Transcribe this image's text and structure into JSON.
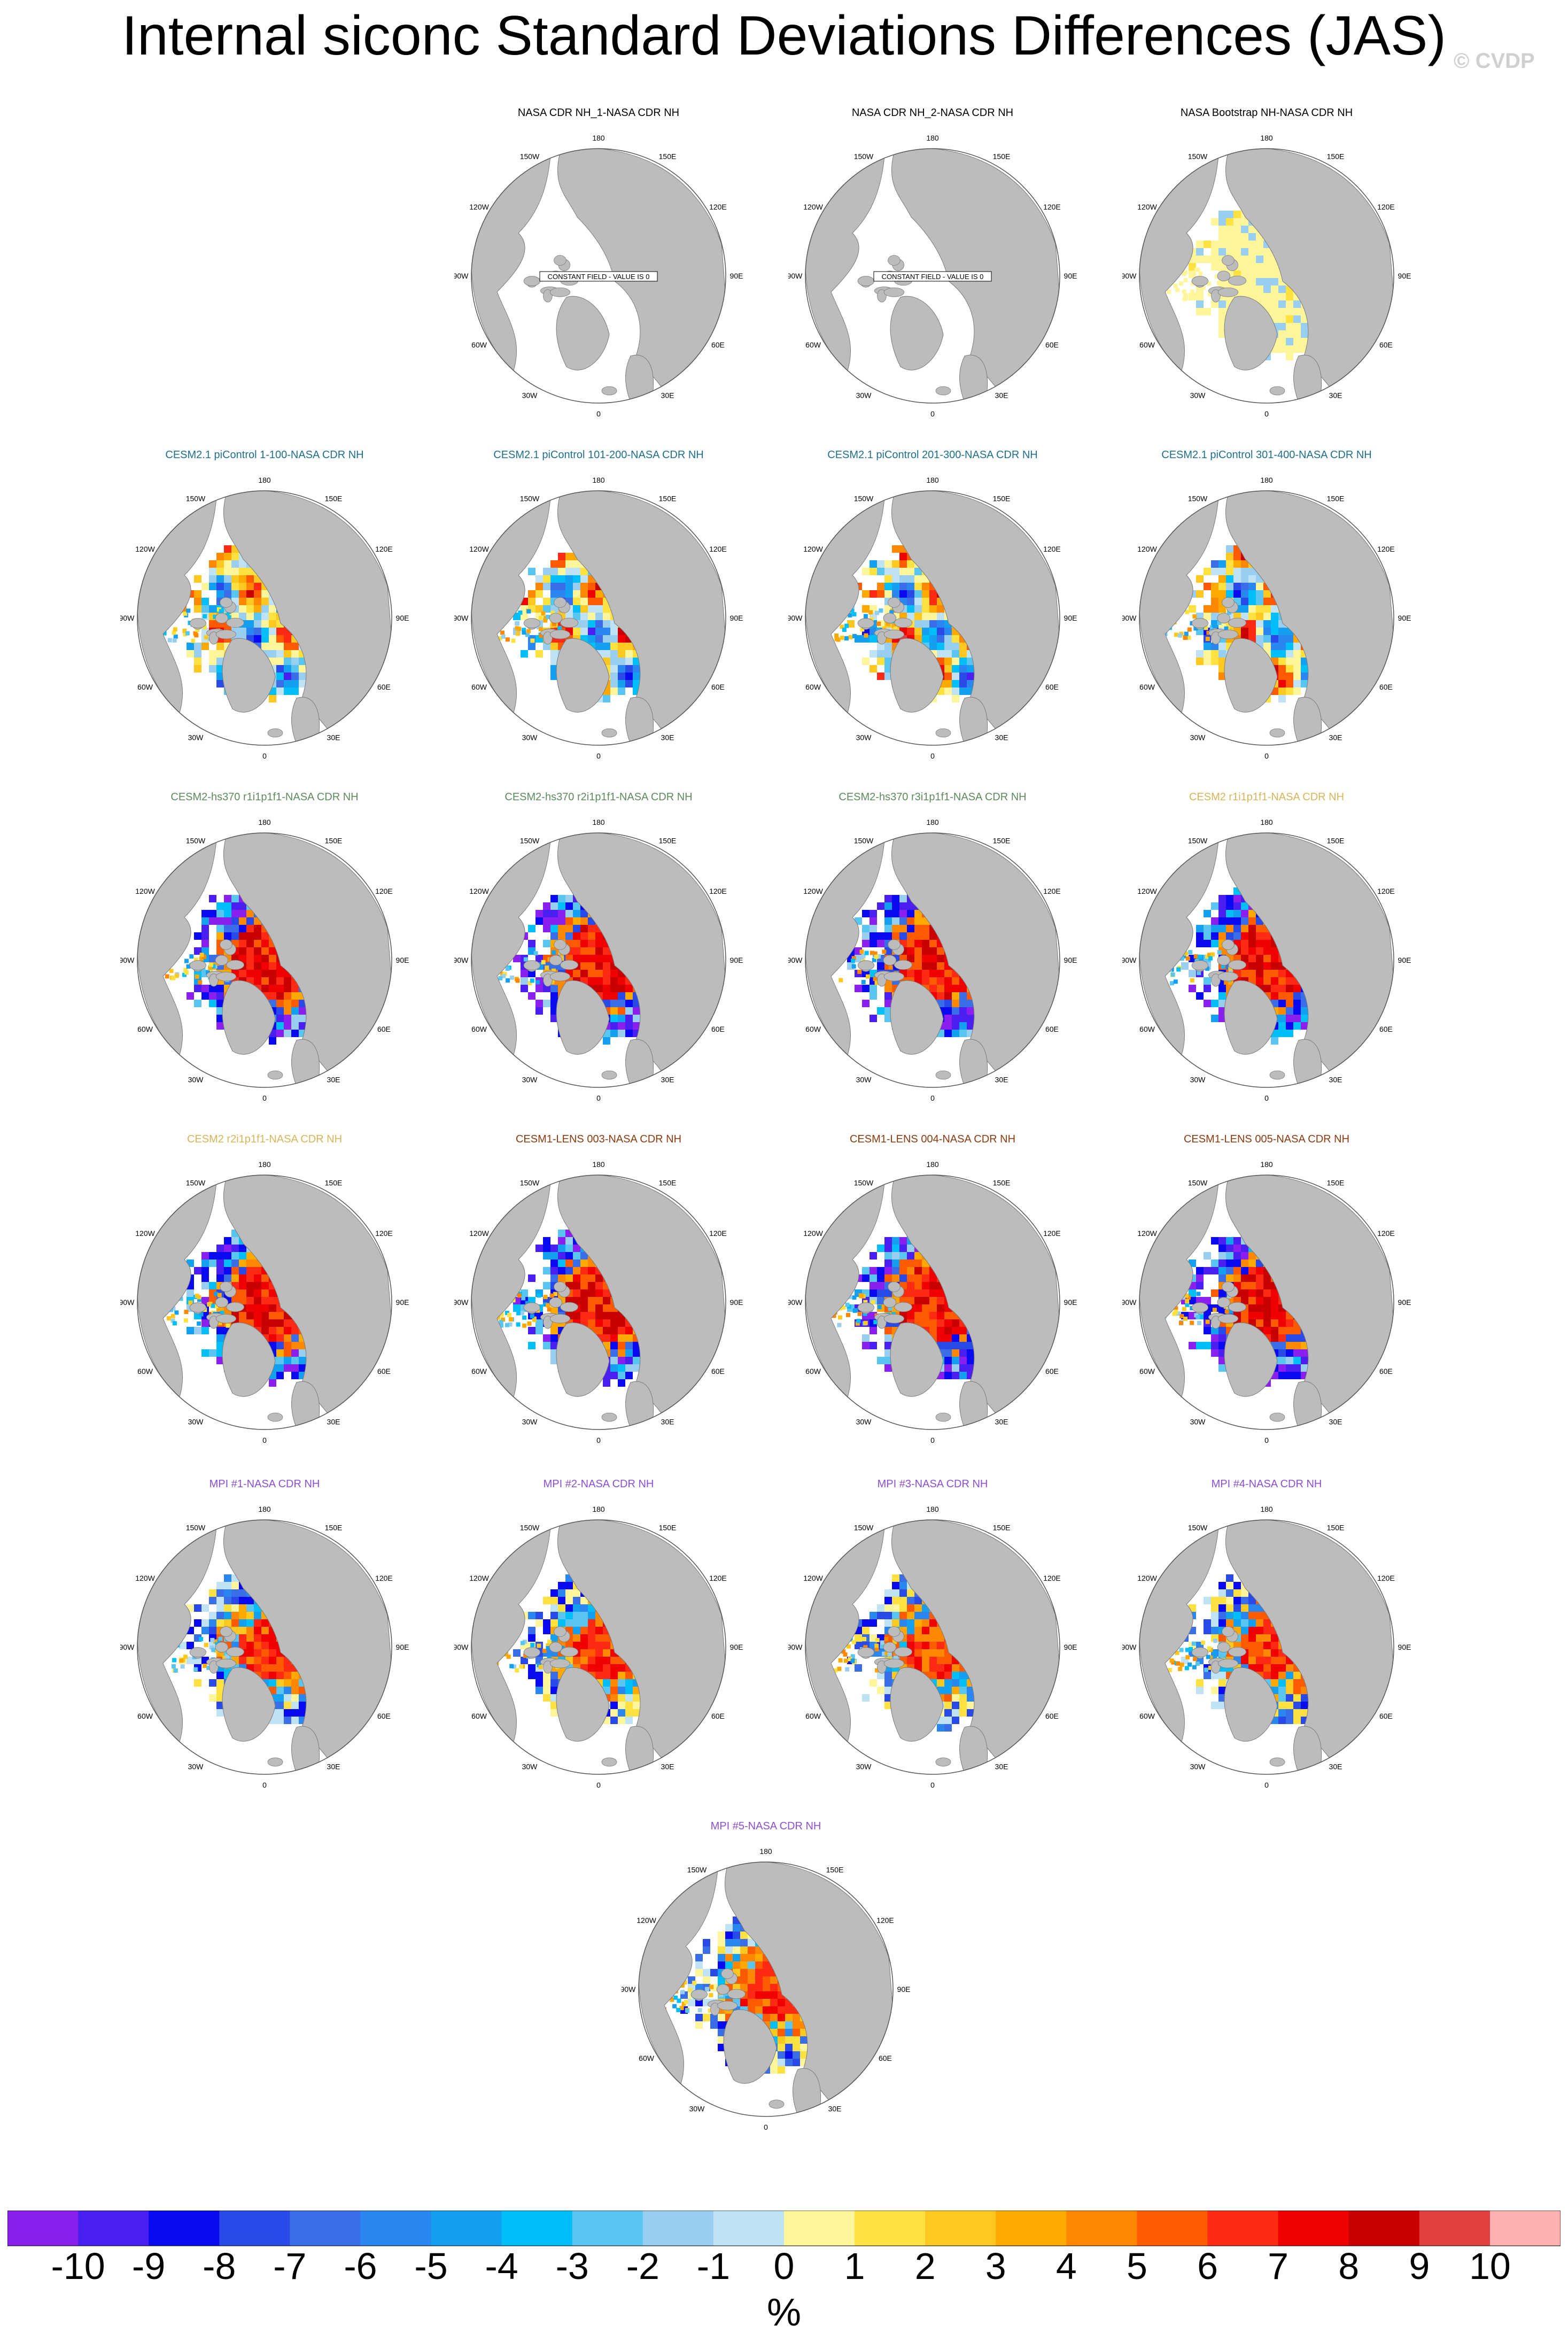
{
  "title": "Internal siconc Standard Deviations Differences (JAS)",
  "watermark": "© CVDP",
  "lon_labels": {
    "l180": "180",
    "l150e": "150E",
    "l120e": "120E",
    "l90e": "90E",
    "l60e": "60E",
    "l30e": "30E",
    "l0": "0",
    "l30w": "30W",
    "l60w": "60W",
    "l90w": "90W",
    "l120w": "120W",
    "l150w": "150W"
  },
  "chart_data": {
    "type": "heatmap",
    "projection": "north polar stereographic",
    "panels": [
      {
        "title": "NASA CDR NH_1-NASA CDR NH",
        "title_color": "#000000",
        "pattern": "empty",
        "note": "CONSTANT FIELD - VALUE IS 0"
      },
      {
        "title": "NASA CDR NH_2-NASA CDR NH",
        "title_color": "#000000",
        "pattern": "empty",
        "note": "CONSTANT FIELD - VALUE IS 0"
      },
      {
        "title": "NASA Bootstrap NH-NASA CDR NH",
        "title_color": "#000000",
        "pattern": "bootstrap"
      },
      {
        "title": "CESM2.1 piControl 1-100-NASA CDR NH",
        "title_color": "#1f6f8b",
        "pattern": "mixed"
      },
      {
        "title": "CESM2.1 piControl 101-200-NASA CDR NH",
        "title_color": "#1f6f8b",
        "pattern": "mixed"
      },
      {
        "title": "CESM2.1 piControl 201-300-NASA CDR NH",
        "title_color": "#1f6f8b",
        "pattern": "mixed"
      },
      {
        "title": "CESM2.1 piControl 301-400-NASA CDR NH",
        "title_color": "#1f6f8b",
        "pattern": "mixed"
      },
      {
        "title": "CESM2-hs370 r1i1p1f1-NASA CDR NH",
        "title_color": "#5d8a5d",
        "pattern": "warm"
      },
      {
        "title": "CESM2-hs370 r2i1p1f1-NASA CDR NH",
        "title_color": "#5d8a5d",
        "pattern": "warm"
      },
      {
        "title": "CESM2-hs370 r3i1p1f1-NASA CDR NH",
        "title_color": "#5d8a5d",
        "pattern": "warm"
      },
      {
        "title": "CESM2 r1i1p1f1-NASA CDR NH",
        "title_color": "#d6b55a",
        "pattern": "warm"
      },
      {
        "title": "CESM2 r2i1p1f1-NASA CDR NH",
        "title_color": "#d6b55a",
        "pattern": "warm"
      },
      {
        "title": "CESM1-LENS 003-NASA CDR NH",
        "title_color": "#8b3a0f",
        "pattern": "warm"
      },
      {
        "title": "CESM1-LENS 004-NASA CDR NH",
        "title_color": "#8b3a0f",
        "pattern": "warm"
      },
      {
        "title": "CESM1-LENS 005-NASA CDR NH",
        "title_color": "#8b3a0f",
        "pattern": "warm"
      },
      {
        "title": "MPI #1-NASA CDR NH",
        "title_color": "#8a4fd6",
        "pattern": "mpi"
      },
      {
        "title": "MPI #2-NASA CDR NH",
        "title_color": "#8a4fd6",
        "pattern": "mpi"
      },
      {
        "title": "MPI #3-NASA CDR NH",
        "title_color": "#8a4fd6",
        "pattern": "mpi"
      },
      {
        "title": "MPI #4-NASA CDR NH",
        "title_color": "#8a4fd6",
        "pattern": "mpi"
      },
      {
        "title": "MPI #5-NASA CDR NH",
        "title_color": "#8a4fd6",
        "pattern": "mpi"
      }
    ],
    "colorbar": {
      "unit": "%",
      "tick_labels": [
        "-10",
        "-9",
        "-8",
        "-7",
        "-6",
        "-5",
        "-4",
        "-3",
        "-2",
        "-1",
        "0",
        "1",
        "2",
        "3",
        "4",
        "5",
        "6",
        "7",
        "8",
        "9",
        "10"
      ],
      "colors": [
        "#8a1ff0",
        "#4a1ff0",
        "#0a0af0",
        "#2a4ae8",
        "#3a6ee8",
        "#2a86f0",
        "#14a0f0",
        "#00bff8",
        "#58c6f0",
        "#98cef0",
        "#bfe3f5",
        "#fff59a",
        "#ffe240",
        "#ffc820",
        "#ffa800",
        "#ff8800",
        "#ff5a00",
        "#ff2a14",
        "#f00000",
        "#c80000",
        "#e04040",
        "#ffb0b0"
      ]
    }
  }
}
